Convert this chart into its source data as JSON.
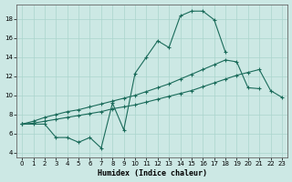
{
  "xlabel": "Humidex (Indice chaleur)",
  "bg_color": "#cce8e4",
  "grid_color": "#aad4cc",
  "line_color": "#1a6b5a",
  "xlim": [
    -0.5,
    23.5
  ],
  "ylim": [
    3.5,
    19.5
  ],
  "yticks": [
    4,
    6,
    8,
    10,
    12,
    14,
    16,
    18
  ],
  "xticks": [
    0,
    1,
    2,
    3,
    4,
    5,
    6,
    7,
    8,
    9,
    10,
    11,
    12,
    13,
    14,
    15,
    16,
    17,
    18,
    19,
    20,
    21,
    22,
    23
  ],
  "line1_x": [
    0,
    1,
    2,
    3,
    4,
    5,
    6,
    7,
    8,
    9,
    10,
    11,
    12,
    13,
    14,
    15,
    16,
    17,
    18
  ],
  "line1_y": [
    7.0,
    7.0,
    7.0,
    5.6,
    5.6,
    5.1,
    5.6,
    4.5,
    9.2,
    6.4,
    12.3,
    14.0,
    15.7,
    15.0,
    18.3,
    18.8,
    18.8,
    17.9,
    14.5
  ],
  "line2_x": [
    0,
    1,
    2,
    3,
    4,
    5,
    6,
    7,
    8,
    9,
    10,
    11,
    12,
    13,
    14,
    15,
    16,
    17,
    18,
    19,
    20,
    21
  ],
  "line2_y": [
    7.0,
    7.3,
    7.7,
    8.0,
    8.3,
    8.5,
    8.8,
    9.1,
    9.4,
    9.7,
    10.0,
    10.4,
    10.8,
    11.2,
    11.7,
    12.2,
    12.7,
    13.2,
    13.7,
    13.5,
    10.8,
    10.7
  ],
  "line3_x": [
    0,
    1,
    2,
    3,
    4,
    5,
    6,
    7,
    8,
    9,
    10,
    11,
    12,
    13,
    14,
    15,
    16,
    17,
    18,
    19,
    20,
    21,
    22,
    23
  ],
  "line3_y": [
    7.0,
    7.1,
    7.3,
    7.5,
    7.7,
    7.9,
    8.1,
    8.3,
    8.6,
    8.8,
    9.0,
    9.3,
    9.6,
    9.9,
    10.2,
    10.5,
    10.9,
    11.3,
    11.7,
    12.1,
    12.4,
    12.7,
    10.5,
    9.8
  ]
}
